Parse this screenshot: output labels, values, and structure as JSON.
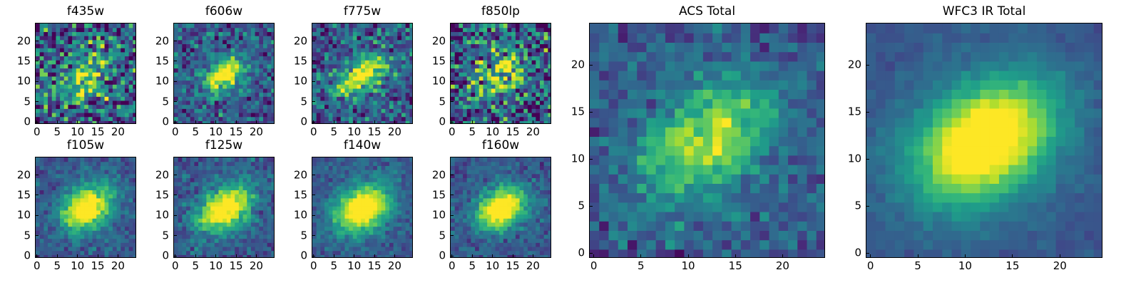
{
  "chart_data": [
    {
      "type": "heatmap",
      "title": "f435w",
      "size": "small",
      "xticks": [
        "0",
        "5",
        "10",
        "15",
        "20"
      ],
      "yticks": [
        "0",
        "5",
        "10",
        "15",
        "20"
      ],
      "xlim": [
        -0.5,
        24.5
      ],
      "ylim": [
        -0.5,
        24.5
      ],
      "colormap": "viridis",
      "signal": 0.45,
      "noise": 0.5,
      "sigma_x": 5.0,
      "sigma_y": 3.5,
      "center": [
        12,
        12
      ],
      "seed": 11
    },
    {
      "type": "heatmap",
      "title": "f606w",
      "size": "small",
      "xticks": [
        "0",
        "5",
        "10",
        "15",
        "20"
      ],
      "yticks": [
        "0",
        "5",
        "10",
        "15",
        "20"
      ],
      "xlim": [
        -0.5,
        24.5
      ],
      "ylim": [
        -0.5,
        24.5
      ],
      "colormap": "viridis",
      "signal": 0.75,
      "noise": 0.28,
      "sigma_x": 3.5,
      "sigma_y": 2.3,
      "center": [
        12,
        12
      ],
      "seed": 23
    },
    {
      "type": "heatmap",
      "title": "f775w",
      "size": "small",
      "xticks": [
        "0",
        "5",
        "10",
        "15",
        "20"
      ],
      "yticks": [
        "0",
        "5",
        "10",
        "15",
        "20"
      ],
      "xlim": [
        -0.5,
        24.5
      ],
      "ylim": [
        -0.5,
        24.5
      ],
      "colormap": "viridis",
      "signal": 0.65,
      "noise": 0.33,
      "sigma_x": 5.0,
      "sigma_y": 2.6,
      "center": [
        12,
        12
      ],
      "seed": 37
    },
    {
      "type": "heatmap",
      "title": "f850lp",
      "size": "small",
      "xticks": [
        "0",
        "5",
        "10",
        "15",
        "20"
      ],
      "yticks": [
        "0",
        "5",
        "10",
        "15",
        "20"
      ],
      "xlim": [
        -0.5,
        24.5
      ],
      "ylim": [
        -0.5,
        24.5
      ],
      "colormap": "viridis",
      "signal": 0.5,
      "noise": 0.5,
      "sigma_x": 5.0,
      "sigma_y": 3.0,
      "center": [
        12,
        12
      ],
      "seed": 41
    },
    {
      "type": "heatmap",
      "title": "f105w",
      "size": "small",
      "xticks": [
        "0",
        "5",
        "10",
        "15",
        "20"
      ],
      "yticks": [
        "0",
        "5",
        "10",
        "15",
        "20"
      ],
      "xlim": [
        -0.5,
        24.5
      ],
      "ylim": [
        -0.5,
        24.5
      ],
      "colormap": "viridis",
      "signal": 0.85,
      "noise": 0.15,
      "sigma_x": 4.5,
      "sigma_y": 3.2,
      "center": [
        12,
        12
      ],
      "seed": 53
    },
    {
      "type": "heatmap",
      "title": "f125w",
      "size": "small",
      "xticks": [
        "0",
        "5",
        "10",
        "15",
        "20"
      ],
      "yticks": [
        "0",
        "5",
        "10",
        "15",
        "20"
      ],
      "xlim": [
        -0.5,
        24.5
      ],
      "ylim": [
        -0.5,
        24.5
      ],
      "colormap": "viridis",
      "signal": 0.85,
      "noise": 0.17,
      "sigma_x": 5.0,
      "sigma_y": 3.2,
      "center": [
        12,
        12
      ],
      "seed": 67
    },
    {
      "type": "heatmap",
      "title": "f140w",
      "size": "small",
      "xticks": [
        "0",
        "5",
        "10",
        "15",
        "20"
      ],
      "yticks": [
        "0",
        "5",
        "10",
        "15",
        "20"
      ],
      "xlim": [
        -0.5,
        24.5
      ],
      "ylim": [
        -0.5,
        24.5
      ],
      "colormap": "viridis",
      "signal": 0.85,
      "noise": 0.13,
      "sigma_x": 5.0,
      "sigma_y": 3.6,
      "center": [
        12,
        12
      ],
      "seed": 71
    },
    {
      "type": "heatmap",
      "title": "f160w",
      "size": "small",
      "xticks": [
        "0",
        "5",
        "10",
        "15",
        "20"
      ],
      "yticks": [
        "0",
        "5",
        "10",
        "15",
        "20"
      ],
      "xlim": [
        -0.5,
        24.5
      ],
      "ylim": [
        -0.5,
        24.5
      ],
      "colormap": "viridis",
      "signal": 0.9,
      "noise": 0.15,
      "sigma_x": 4.3,
      "sigma_y": 3.0,
      "center": [
        12,
        12
      ],
      "seed": 83
    },
    {
      "type": "heatmap",
      "title": "ACS Total",
      "size": "large",
      "xticks": [
        "0",
        "5",
        "10",
        "15",
        "20"
      ],
      "yticks": [
        "0",
        "5",
        "10",
        "15",
        "20"
      ],
      "xlim": [
        -0.5,
        24.5
      ],
      "ylim": [
        -0.5,
        24.5
      ],
      "colormap": "viridis",
      "signal": 0.55,
      "noise": 0.18,
      "sigma_x": 5.5,
      "sigma_y": 3.2,
      "center": [
        12,
        12
      ],
      "seed": 97
    },
    {
      "type": "heatmap",
      "title": "WFC3 IR Total",
      "size": "large",
      "xticks": [
        "0",
        "5",
        "10",
        "15",
        "20"
      ],
      "yticks": [
        "0",
        "5",
        "10",
        "15",
        "20"
      ],
      "xlim": [
        -0.5,
        24.5
      ],
      "ylim": [
        -0.5,
        24.5
      ],
      "colormap": "viridis",
      "signal": 0.9,
      "noise": 0.06,
      "sigma_x": 5.5,
      "sigma_y": 3.8,
      "center": [
        12,
        12
      ],
      "seed": 101
    }
  ]
}
